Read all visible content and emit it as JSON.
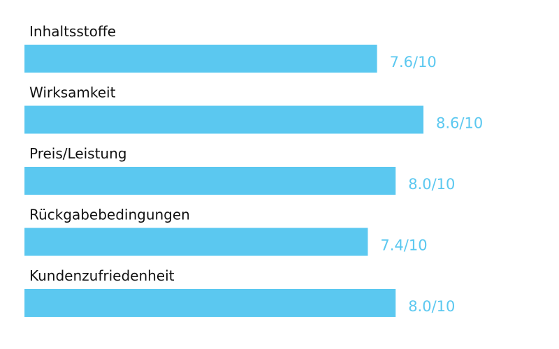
{
  "chart_data": {
    "type": "bar",
    "orientation": "horizontal",
    "categories": [
      "Inhaltsstoffe",
      "Wirksamkeit",
      "Preis/Leistung",
      "Rückgabebedingungen",
      "Kundenzufriedenheit"
    ],
    "values": [
      7.6,
      8.6,
      8.0,
      7.4,
      8.0
    ],
    "value_labels": [
      "7.6/10",
      "8.6/10",
      "8.0/10",
      "7.4/10",
      "8.0/10"
    ],
    "xlim": [
      0,
      10
    ],
    "bar_color": "#5bc8f0",
    "label_color": "#111111",
    "value_label_color": "#5bc8f0",
    "grid": false,
    "legend": "none"
  }
}
